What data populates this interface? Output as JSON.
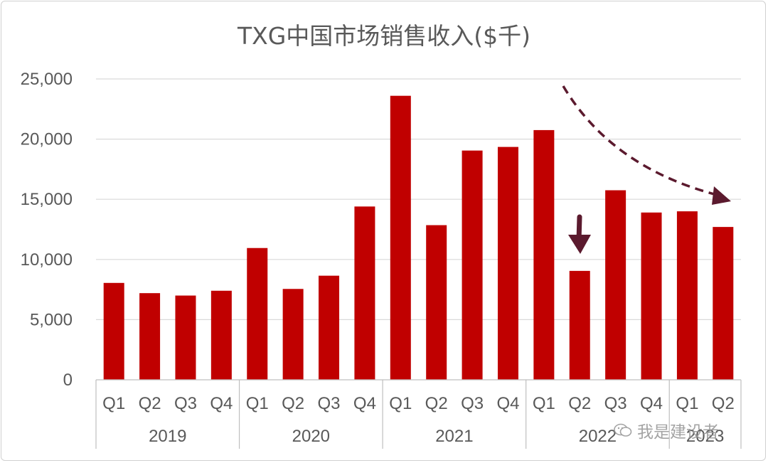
{
  "chart_data": {
    "type": "bar",
    "title": "TXG中国市场销售收入($千)",
    "xlabel": "",
    "ylabel": "",
    "ylim": [
      0,
      25000
    ],
    "yticks": [
      0,
      5000,
      10000,
      15000,
      20000,
      25000
    ],
    "ytick_labels": [
      "0",
      "5,000",
      "10,000",
      "15,000",
      "20,000",
      "25,000"
    ],
    "grid": true,
    "legend": "none",
    "bar_color": "#C00000",
    "annotation_color": "#5B1A2E",
    "groups": [
      {
        "year": "2019",
        "quarters": [
          "Q1",
          "Q2",
          "Q3",
          "Q4"
        ]
      },
      {
        "year": "2020",
        "quarters": [
          "Q1",
          "Q2",
          "Q3",
          "Q4"
        ]
      },
      {
        "year": "2021",
        "quarters": [
          "Q1",
          "Q2",
          "Q3",
          "Q4"
        ]
      },
      {
        "year": "2022",
        "quarters": [
          "Q1",
          "Q2",
          "Q3",
          "Q4"
        ]
      },
      {
        "year": "2023",
        "quarters": [
          "Q1",
          "Q2"
        ]
      }
    ],
    "categories": [
      "2019 Q1",
      "2019 Q2",
      "2019 Q3",
      "2019 Q4",
      "2020 Q1",
      "2020 Q2",
      "2020 Q3",
      "2020 Q4",
      "2021 Q1",
      "2021 Q2",
      "2021 Q3",
      "2021 Q4",
      "2022 Q1",
      "2022 Q2",
      "2022 Q3",
      "2022 Q4",
      "2023 Q1",
      "2023 Q2"
    ],
    "values": [
      8050,
      7200,
      7000,
      7400,
      10950,
      7550,
      8650,
      14400,
      23600,
      12850,
      19050,
      19350,
      20750,
      9050,
      15750,
      13900,
      14000,
      12700
    ]
  },
  "watermark": {
    "text": "我是建设者",
    "icon": "wechat-icon"
  }
}
